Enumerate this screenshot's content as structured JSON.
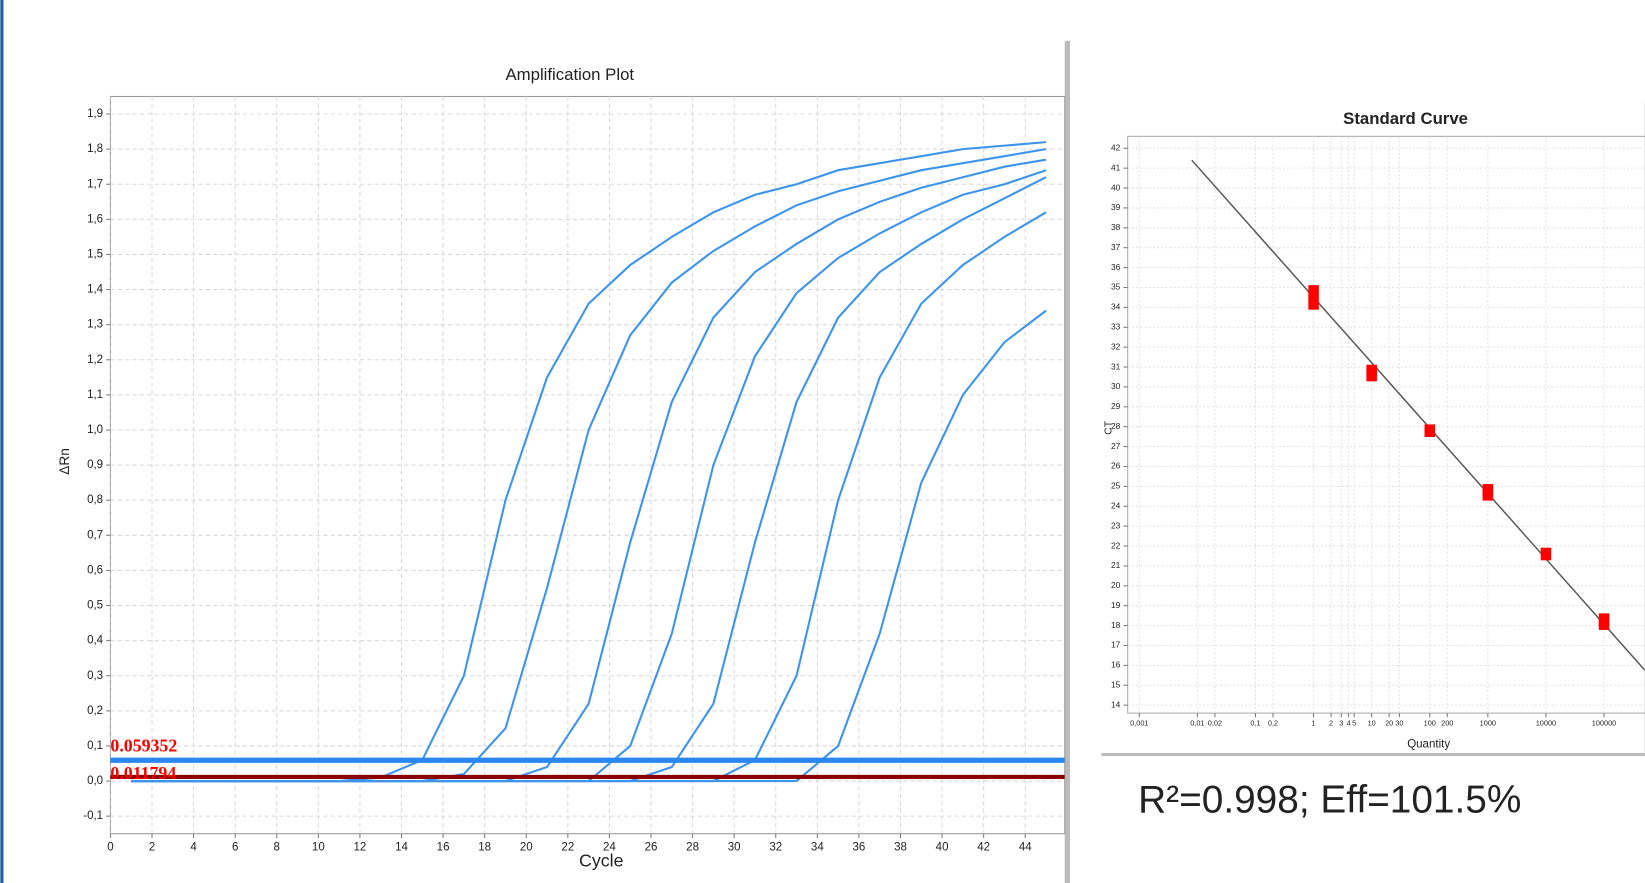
{
  "chart_data": [
    {
      "type": "line",
      "title": "Amplification Plot",
      "xlabel": "Cycle",
      "ylabel": "ΔRn",
      "xlim": [
        0,
        45.9
      ],
      "ylim": [
        -0.15,
        1.95
      ],
      "grid": true,
      "xticks": [
        0,
        2,
        4,
        6,
        8,
        10,
        12,
        14,
        16,
        18,
        20,
        22,
        24,
        26,
        28,
        30,
        32,
        34,
        36,
        38,
        40,
        42,
        44
      ],
      "yticks": [
        {
          "value": -0.1,
          "label": "-0,1"
        },
        {
          "value": 0,
          "label": "0,0"
        },
        {
          "value": 0.1,
          "label": "0,1"
        },
        {
          "value": 0.2,
          "label": "0,2"
        },
        {
          "value": 0.3,
          "label": "0,3"
        },
        {
          "value": 0.4,
          "label": "0,4"
        },
        {
          "value": 0.5,
          "label": "0,5"
        },
        {
          "value": 0.6,
          "label": "0,6"
        },
        {
          "value": 0.7,
          "label": "0,7"
        },
        {
          "value": 0.8,
          "label": "0,8"
        },
        {
          "value": 0.9,
          "label": "0,9"
        },
        {
          "value": 1.0,
          "label": "1,0"
        },
        {
          "value": 1.1,
          "label": "1,1"
        },
        {
          "value": 1.2,
          "label": "1,2"
        },
        {
          "value": 1.3,
          "label": "1,3"
        },
        {
          "value": 1.4,
          "label": "1,4"
        },
        {
          "value": 1.5,
          "label": "1,5"
        },
        {
          "value": 1.6,
          "label": "1,6"
        },
        {
          "value": 1.7,
          "label": "1,7"
        },
        {
          "value": 1.8,
          "label": "1,8"
        },
        {
          "value": 1.9,
          "label": "1,9"
        }
      ],
      "x": [
        1,
        3,
        5,
        7,
        9,
        11,
        13,
        15,
        17,
        19,
        21,
        23,
        25,
        27,
        29,
        31,
        33,
        35,
        37,
        39,
        41,
        43,
        45
      ],
      "series": [
        {
          "color": "#3d94ec",
          "values": [
            0,
            0,
            0,
            0,
            0,
            0,
            0.01,
            0.06,
            0.3,
            0.8,
            1.15,
            1.36,
            1.47,
            1.55,
            1.62,
            1.67,
            1.7,
            1.74,
            1.76,
            1.78,
            1.8,
            1.81,
            1.82
          ]
        },
        {
          "color": "#3d94ec",
          "values": [
            0,
            0,
            0,
            0,
            0,
            0,
            0,
            0,
            0.02,
            0.15,
            0.55,
            1.0,
            1.27,
            1.42,
            1.51,
            1.58,
            1.64,
            1.68,
            1.71,
            1.74,
            1.76,
            1.78,
            1.8
          ]
        },
        {
          "color": "#3d94ec",
          "values": [
            0,
            0,
            0,
            0,
            0,
            0,
            0,
            0,
            0,
            0,
            0.04,
            0.22,
            0.68,
            1.08,
            1.32,
            1.45,
            1.53,
            1.6,
            1.65,
            1.69,
            1.72,
            1.75,
            1.77
          ]
        },
        {
          "color": "#3d94ec",
          "values": [
            0,
            0,
            0,
            0,
            0,
            0,
            0,
            0,
            0,
            0,
            0,
            0,
            0.1,
            0.42,
            0.9,
            1.21,
            1.39,
            1.49,
            1.56,
            1.62,
            1.67,
            1.7,
            1.74
          ]
        },
        {
          "color": "#3d94ec",
          "values": [
            0,
            0,
            0,
            0,
            0,
            0,
            0,
            0,
            0,
            0,
            0,
            0,
            0,
            0.04,
            0.22,
            0.68,
            1.08,
            1.32,
            1.45,
            1.53,
            1.6,
            1.66,
            1.72
          ]
        },
        {
          "color": "#3d94ec",
          "values": [
            0,
            0,
            0,
            0,
            0,
            0,
            0,
            0,
            0,
            0,
            0,
            0,
            0,
            0,
            0,
            0.06,
            0.3,
            0.8,
            1.15,
            1.36,
            1.47,
            1.55,
            1.62
          ]
        },
        {
          "color": "#3d94ec",
          "values": [
            0,
            0,
            0,
            0,
            0,
            0,
            0,
            0,
            0,
            0,
            0,
            0,
            0,
            0,
            0,
            0,
            0,
            0.1,
            0.42,
            0.85,
            1.1,
            1.25,
            1.34
          ]
        }
      ],
      "threshold_lines": [
        {
          "value": 0.059352,
          "color": "#2a86f0"
        },
        {
          "value": 0.011794,
          "color": "#8b0000"
        }
      ]
    },
    {
      "type": "scatter",
      "title": "Standard Curve",
      "xlabel": "Quantity",
      "ylabel": "CT",
      "xscale": "log",
      "xlim": [
        0.00063,
        10000000
      ],
      "ylim": [
        13.6,
        42.6
      ],
      "grid": true,
      "xticks": [
        {
          "value": 0.001,
          "label": "0,001"
        },
        {
          "value": 0.01,
          "label": "0,01"
        },
        {
          "value": 0.02,
          "label": "0,02"
        },
        {
          "value": 0.1,
          "label": "0,1"
        },
        {
          "value": 0.2,
          "label": "0,2"
        },
        1,
        2,
        3,
        4,
        5,
        10,
        20,
        30,
        100,
        200,
        1000,
        10000,
        100000
      ],
      "yticks": [
        14,
        15,
        16,
        17,
        18,
        19,
        20,
        21,
        22,
        23,
        24,
        25,
        26,
        27,
        28,
        29,
        30,
        31,
        32,
        33,
        34,
        35,
        36,
        37,
        38,
        39,
        40,
        41,
        42
      ],
      "series": [
        {
          "color": "#ff0000",
          "x": [
            1,
            1,
            10,
            10,
            100,
            1000,
            1000,
            10000,
            100000,
            100000
          ],
          "values": [
            34.8,
            34.2,
            30.8,
            30.6,
            27.8,
            24.8,
            24.6,
            21.6,
            18.3,
            18.1
          ]
        }
      ],
      "fit_line": {
        "color": "#555555",
        "x": [
          0.008,
          1000000
        ],
        "values": [
          41.4,
          14.78
        ]
      },
      "annotation": "R²=0.998; Eff=101.5%"
    }
  ]
}
